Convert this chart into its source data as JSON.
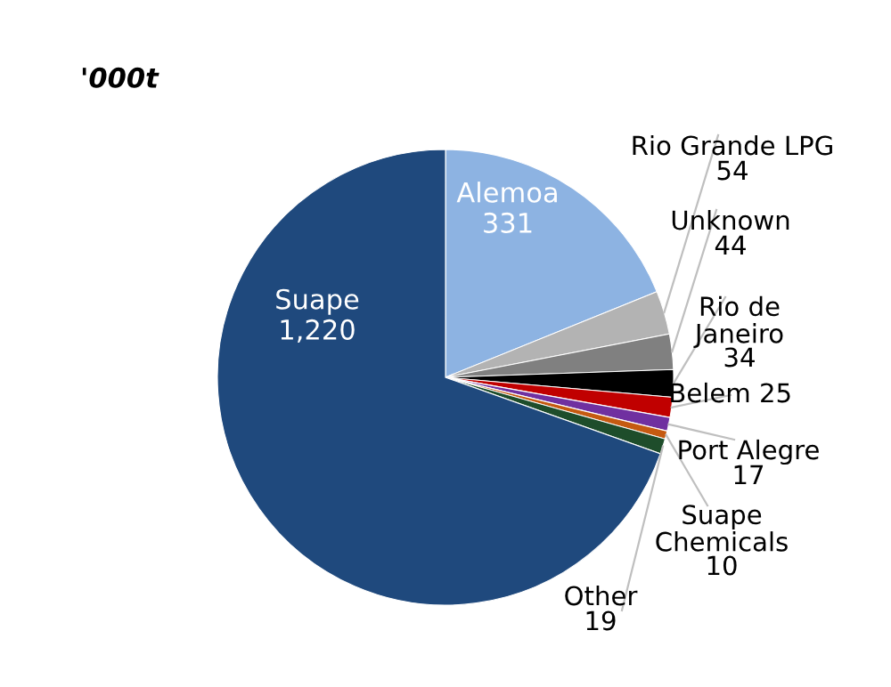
{
  "chart_data": {
    "type": "pie",
    "title": "'000t",
    "categories": [
      "Alemoa",
      "Rio Grande LPG",
      "Unknown",
      "Rio de Janeiro",
      "Belem",
      "Port Alegre",
      "Suape Chemicals",
      "Other",
      "Suape"
    ],
    "values": [
      331,
      54,
      44,
      34,
      25,
      17,
      10,
      19,
      1220
    ],
    "colors": [
      "#8db3e2",
      "#b3b3b3",
      "#808080",
      "#000000",
      "#c00000",
      "#7030a0",
      "#c55a11",
      "#1e4d2b",
      "#1f497d"
    ],
    "value_labels": [
      "331",
      "54",
      "44",
      "34",
      "25",
      "17",
      "10",
      "19",
      "1,220"
    ]
  }
}
